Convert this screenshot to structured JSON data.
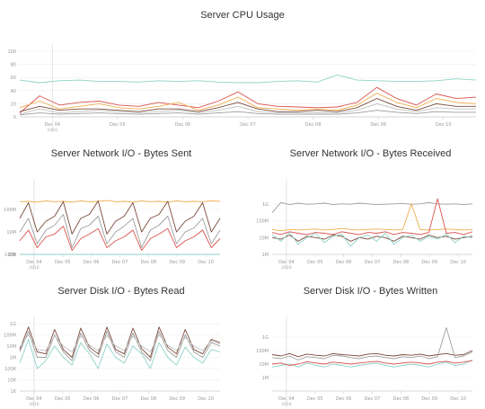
{
  "chart_data": [
    {
      "id": "cpu",
      "type": "line",
      "title": "Server CPU Usage",
      "y_scale": "linear",
      "ylim": [
        0,
        100
      ],
      "y_ticks": [
        "100",
        "80",
        "60",
        "40",
        "20",
        "0"
      ],
      "y_tick_values": [
        100,
        80,
        60,
        40,
        20,
        0
      ],
      "x_ticks": [
        "Dec 04",
        "Dec 05",
        "Dec 06",
        "Dec 07",
        "Dec 08",
        "Dec 09",
        "Dec 10"
      ],
      "x_sublabel": "2016",
      "marker_position": "Dec 04",
      "series": [
        {
          "color": "#8fd3c9",
          "values": [
            56,
            52,
            55,
            56,
            54,
            54,
            53,
            55,
            54,
            55,
            53,
            52,
            52,
            54,
            55,
            53,
            64,
            56,
            55,
            54,
            54,
            55,
            58,
            56
          ]
        },
        {
          "color": "#d9534f",
          "values": [
            6,
            32,
            18,
            22,
            24,
            18,
            16,
            22,
            18,
            14,
            24,
            38,
            20,
            16,
            15,
            14,
            15,
            22,
            45,
            28,
            18,
            35,
            28,
            30
          ]
        },
        {
          "color": "#f0ad4e",
          "values": [
            14,
            24,
            12,
            16,
            20,
            14,
            12,
            16,
            22,
            10,
            18,
            30,
            14,
            12,
            10,
            12,
            10,
            18,
            36,
            22,
            14,
            28,
            22,
            20
          ]
        },
        {
          "color": "#c0c0c0",
          "values": [
            4,
            12,
            6,
            8,
            10,
            8,
            6,
            8,
            10,
            6,
            10,
            16,
            8,
            6,
            6,
            6,
            6,
            10,
            20,
            12,
            8,
            14,
            12,
            12
          ]
        },
        {
          "color": "#7a4a3a",
          "values": [
            8,
            16,
            10,
            12,
            12,
            10,
            8,
            12,
            12,
            8,
            14,
            22,
            12,
            8,
            8,
            10,
            8,
            14,
            28,
            16,
            10,
            20,
            16,
            16
          ]
        },
        {
          "color": "#9e9e9e",
          "values": [
            3,
            6,
            4,
            5,
            6,
            5,
            4,
            5,
            6,
            4,
            6,
            8,
            5,
            4,
            4,
            4,
            4,
            6,
            10,
            7,
            5,
            8,
            7,
            7
          ]
        }
      ]
    },
    {
      "id": "net-sent",
      "type": "line",
      "title": "Server Network I/O - Bytes Sent",
      "y_scale": "log",
      "ylim": [
        1,
        1000
      ],
      "y_ticks": [
        "100M",
        "10M",
        "1M",
        "100K",
        "10K"
      ],
      "y_tick_values": [
        100,
        10,
        1,
        0.1,
        0.01
      ],
      "x_ticks": [
        "Dec 04",
        "Dec 05",
        "Dec 06",
        "Dec 07",
        "Dec 08",
        "Dec 09",
        "Dec 10"
      ],
      "x_sublabel": "2016",
      "marker_position": "Dec 04",
      "series": [
        {
          "color": "#f0ad4e",
          "values": [
            220,
            230,
            210,
            240,
            220,
            230,
            210,
            240,
            220,
            230,
            250,
            220,
            230,
            210,
            240,
            220,
            230,
            210,
            240,
            220,
            230,
            220,
            240,
            230
          ]
        },
        {
          "color": "#8fd3c9",
          "values": [
            0.008,
            0.02,
            0.01,
            0.15,
            0.01,
            0.02,
            0.01,
            0.05,
            0.008,
            0.02,
            0.01,
            0.04,
            0.01,
            0.02,
            0.01,
            0.06,
            0.008,
            0.02,
            0.01,
            0.05,
            0.01,
            0.02,
            0.01,
            0.05
          ]
        },
        {
          "color": "#7a4a3a",
          "values": [
            40,
            200,
            10,
            30,
            50,
            220,
            8,
            40,
            60,
            240,
            8,
            30,
            50,
            200,
            10,
            40,
            60,
            230,
            10,
            30,
            50,
            200,
            10,
            40
          ]
        },
        {
          "color": "#9e9e9e",
          "values": [
            10,
            40,
            3,
            12,
            20,
            60,
            2,
            14,
            20,
            50,
            3,
            10,
            18,
            40,
            2,
            12,
            20,
            50,
            3,
            10,
            15,
            40,
            3,
            12
          ]
        },
        {
          "color": "#d9534f",
          "values": [
            4,
            12,
            2,
            6,
            8,
            18,
            1.5,
            5,
            8,
            14,
            2,
            4,
            6,
            12,
            1.5,
            5,
            8,
            14,
            2,
            4,
            6,
            12,
            2,
            5
          ]
        }
      ]
    },
    {
      "id": "net-recv",
      "type": "line",
      "title": "Server Network I/O - Bytes Received",
      "y_scale": "log",
      "ylim": [
        1,
        10000
      ],
      "y_ticks": [
        "1G",
        "100M",
        "10M",
        "1M"
      ],
      "y_tick_values": [
        1000,
        100,
        10,
        1
      ],
      "x_ticks": [
        "Dec 04",
        "Dec 05",
        "Dec 06",
        "Dec 07",
        "Dec 08",
        "Dec 09",
        "Dec 10"
      ],
      "x_sublabel": "2016",
      "marker_position": "Dec 04",
      "series": [
        {
          "color": "#9e9e9e",
          "values": [
            300,
            1200,
            900,
            1100,
            950,
            1000,
            1100,
            900,
            1000,
            950,
            1100,
            1000,
            900,
            950,
            1000,
            1050,
            950,
            1000,
            1200,
            1000,
            950,
            1000,
            900,
            1000
          ]
        },
        {
          "color": "#f0ad4e",
          "values": [
            30,
            25,
            30,
            28,
            30,
            32,
            28,
            30,
            35,
            30,
            28,
            30,
            32,
            30,
            28,
            30,
            1000,
            30,
            28,
            30,
            32,
            30,
            28,
            30
          ]
        },
        {
          "color": "#d9534f",
          "values": [
            20,
            15,
            22,
            18,
            15,
            20,
            18,
            15,
            22,
            18,
            15,
            20,
            18,
            22,
            15,
            20,
            18,
            15,
            20,
            2000,
            18,
            20,
            15,
            22
          ]
        },
        {
          "color": "#7a4a3a",
          "values": [
            10,
            8,
            14,
            6,
            12,
            10,
            8,
            14,
            12,
            6,
            10,
            8,
            12,
            10,
            6,
            12,
            10,
            8,
            14,
            10,
            12,
            8,
            10,
            12
          ]
        },
        {
          "color": "#8fd3c9",
          "values": [
            15,
            6,
            20,
            4,
            10,
            18,
            5,
            12,
            16,
            3,
            10,
            14,
            6,
            18,
            4,
            10,
            14,
            6,
            12,
            8,
            16,
            5,
            12,
            10
          ]
        }
      ]
    },
    {
      "id": "disk-read",
      "type": "line",
      "title": "Server Disk I/O - Bytes Read",
      "y_scale": "log",
      "ylim": [
        0.001,
        1000
      ],
      "y_ticks": [
        "1G",
        "100M",
        "10M",
        "1M",
        "100K",
        "10K",
        "1K"
      ],
      "y_tick_values": [
        1000,
        100,
        10,
        1,
        0.1,
        0.01,
        0.001
      ],
      "x_ticks": [
        "Dec 04",
        "Dec 05",
        "Dec 06",
        "Dec 07",
        "Dec 08",
        "Dec 09",
        "Dec 10"
      ],
      "x_sublabel": "2016",
      "marker_position": "Dec 04",
      "series": [
        {
          "color": "#7a4a3a",
          "values": [
            5,
            500,
            3,
            2,
            300,
            5,
            1,
            400,
            8,
            2,
            500,
            5,
            2,
            400,
            6,
            1,
            500,
            8,
            2,
            300,
            5,
            2,
            40,
            20
          ]
        },
        {
          "color": "#9e9e9e",
          "values": [
            3,
            200,
            1,
            1,
            100,
            3,
            0.5,
            150,
            4,
            1,
            200,
            3,
            1,
            150,
            3,
            0.5,
            200,
            4,
            1,
            100,
            3,
            1,
            20,
            10
          ]
        },
        {
          "color": "#8fd3c9",
          "values": [
            0.3,
            40,
            0.1,
            0.5,
            10,
            1,
            0.2,
            20,
            2,
            0.1,
            15,
            1,
            0.3,
            10,
            2,
            0.1,
            20,
            1,
            0.2,
            8,
            1,
            0.3,
            5,
            3
          ]
        },
        {
          "color": "#c0c0c0",
          "values": [
            8,
            100,
            5,
            4,
            80,
            10,
            3,
            80,
            12,
            4,
            90,
            10,
            4,
            80,
            10,
            3,
            100,
            12,
            4,
            60,
            10,
            4,
            30,
            15
          ]
        }
      ]
    },
    {
      "id": "disk-written",
      "type": "line",
      "title": "Server Disk I/O - Bytes Written",
      "y_scale": "log",
      "ylim": [
        0.1,
        10000
      ],
      "y_ticks": [
        "1G",
        "100M",
        "10M",
        "1M"
      ],
      "y_tick_values": [
        1000,
        100,
        10,
        1
      ],
      "x_ticks": [
        "Dec 04",
        "Dec 05",
        "Dec 06",
        "Dec 07",
        "Dec 08",
        "Dec 09",
        "Dec 10"
      ],
      "x_sublabel": "2016",
      "marker_position": "Dec 04",
      "series": [
        {
          "color": "#7a4a3a",
          "values": [
            50,
            40,
            60,
            35,
            55,
            45,
            40,
            60,
            50,
            45,
            40,
            55,
            60,
            45,
            40,
            50,
            45,
            55,
            40,
            50,
            60,
            45,
            50,
            100
          ]
        },
        {
          "color": "#9e9e9e",
          "values": [
            30,
            25,
            40,
            20,
            35,
            30,
            25,
            45,
            40,
            30,
            25,
            35,
            40,
            30,
            25,
            35,
            30,
            40,
            25,
            35,
            5000,
            30,
            40,
            80
          ]
        },
        {
          "color": "#8fd3c9",
          "values": [
            6,
            8,
            10,
            6,
            12,
            8,
            6,
            10,
            8,
            6,
            8,
            10,
            12,
            8,
            6,
            8,
            10,
            8,
            6,
            10,
            14,
            8,
            10,
            20
          ]
        },
        {
          "color": "#d9534f",
          "values": [
            10,
            12,
            8,
            10,
            15,
            12,
            10,
            14,
            12,
            10,
            12,
            14,
            16,
            12,
            10,
            12,
            14,
            12,
            10,
            14,
            16,
            12,
            14,
            18
          ]
        }
      ]
    }
  ]
}
